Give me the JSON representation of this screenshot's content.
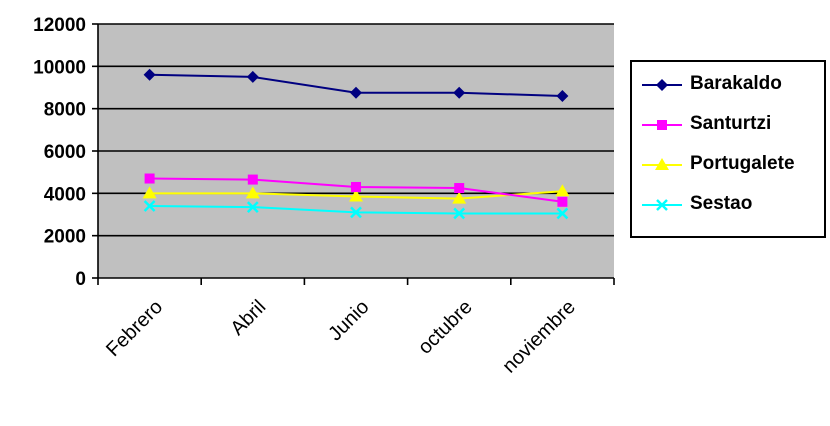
{
  "chart_data": {
    "type": "line",
    "categories": [
      "Febrero",
      "Abril",
      "Junio",
      "octubre",
      "noviembre"
    ],
    "series": [
      {
        "name": "Barakaldo",
        "values": [
          9600,
          9500,
          8750,
          8750,
          8600
        ],
        "color": "#000080",
        "marker": "diamond"
      },
      {
        "name": "Santurtzi",
        "values": [
          4700,
          4650,
          4300,
          4250,
          3600
        ],
        "color": "#ff00ff",
        "marker": "square"
      },
      {
        "name": "Portugalete",
        "values": [
          4000,
          4000,
          3850,
          3750,
          4100
        ],
        "color": "#ffff00",
        "marker": "triangle"
      },
      {
        "name": "Sestao",
        "values": [
          3400,
          3350,
          3100,
          3050,
          3050
        ],
        "color": "#00ffff",
        "marker": "x"
      }
    ],
    "yticks": [
      0,
      2000,
      4000,
      6000,
      8000,
      10000,
      12000
    ],
    "ylim": [
      0,
      12000
    ],
    "title": "",
    "xlabel": "",
    "ylabel": "",
    "grid": true,
    "plot_background": "#c0c0c0",
    "legend_position": "right"
  }
}
